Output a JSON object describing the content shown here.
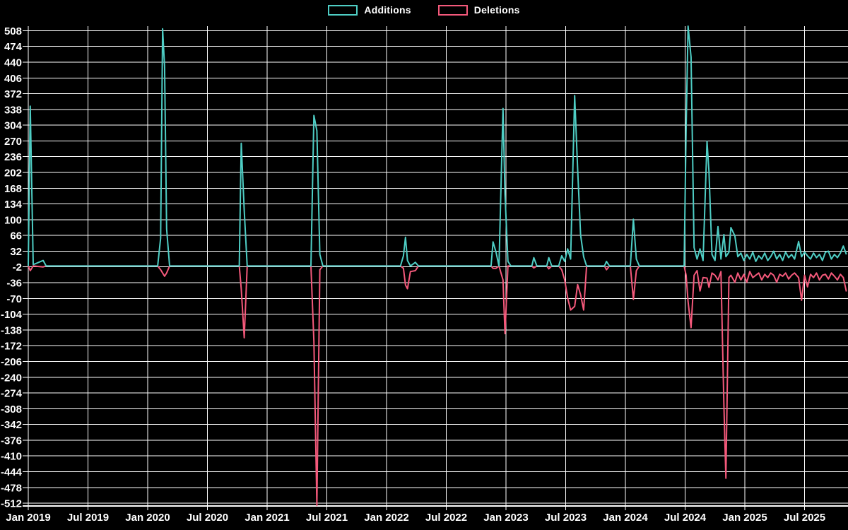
{
  "legend": {
    "items": [
      {
        "label": "Additions",
        "color": "#4ecdc4"
      },
      {
        "label": "Deletions",
        "color": "#f4597b"
      }
    ]
  },
  "chart_data": {
    "type": "line",
    "legend_position": "top-center",
    "grid": true,
    "background": "#000000",
    "grid_color": "#ffffff",
    "text_color": "#ffffff",
    "x_axis": {
      "unit": "months_since_jan_2019",
      "right_edge_t": 82.4,
      "ticks": [
        {
          "t": 0,
          "label": "Jan 2019"
        },
        {
          "t": 6,
          "label": "Jul 2019"
        },
        {
          "t": 12,
          "label": "Jan 2020"
        },
        {
          "t": 18,
          "label": "Jul 2020"
        },
        {
          "t": 24,
          "label": "Jan 2021"
        },
        {
          "t": 30,
          "label": "Jul 2021"
        },
        {
          "t": 36,
          "label": "Jan 2022"
        },
        {
          "t": 42,
          "label": "Jul 2022"
        },
        {
          "t": 48,
          "label": "Jan 2023"
        },
        {
          "t": 54,
          "label": "Jul 2023"
        },
        {
          "t": 60,
          "label": "Jan 2024"
        },
        {
          "t": 66,
          "label": "Jul 2024"
        },
        {
          "t": 72,
          "label": "Jan 2025"
        },
        {
          "t": 78,
          "label": "Jul 2025"
        }
      ]
    },
    "y_axis": {
      "tick_step": 34,
      "visible_range": [
        -517,
        519
      ],
      "tick_values": [
        508,
        474,
        440,
        406,
        372,
        338,
        304,
        270,
        236,
        202,
        168,
        134,
        100,
        66,
        32,
        -2,
        -36,
        -70,
        -104,
        -138,
        -172,
        -206,
        -240,
        -274,
        -308,
        -342,
        -376,
        -410,
        -444,
        -478,
        -512
      ]
    },
    "series": [
      {
        "name": "Additions",
        "color": "#4ecdc4",
        "value_index": 1
      },
      {
        "name": "Deletions",
        "color": "#f4597b",
        "value_index": 2
      }
    ],
    "points": [
      [
        0.0,
        0,
        0
      ],
      [
        0.2,
        345,
        -10
      ],
      [
        0.5,
        3,
        0
      ],
      [
        1.5,
        12,
        -2
      ],
      [
        1.8,
        0,
        0
      ],
      [
        13.0,
        0,
        0
      ],
      [
        13.3,
        60,
        -8
      ],
      [
        13.5,
        512,
        -15
      ],
      [
        13.7,
        430,
        -22
      ],
      [
        13.9,
        80,
        -15
      ],
      [
        14.2,
        0,
        0
      ],
      [
        21.2,
        0,
        0
      ],
      [
        21.4,
        265,
        -50
      ],
      [
        21.7,
        120,
        -155
      ],
      [
        22.0,
        0,
        0
      ],
      [
        28.4,
        0,
        0
      ],
      [
        28.7,
        325,
        -163
      ],
      [
        29.0,
        292,
        -517
      ],
      [
        29.3,
        25,
        -8
      ],
      [
        29.6,
        0,
        0
      ],
      [
        37.4,
        0,
        0
      ],
      [
        37.7,
        22,
        -5
      ],
      [
        37.9,
        62,
        -41
      ],
      [
        38.1,
        12,
        -49
      ],
      [
        38.4,
        0,
        -12
      ],
      [
        38.9,
        8,
        -10
      ],
      [
        39.2,
        0,
        0
      ],
      [
        46.5,
        0,
        0
      ],
      [
        46.7,
        52,
        -5
      ],
      [
        47.0,
        30,
        -5
      ],
      [
        47.3,
        0,
        0
      ],
      [
        47.7,
        340,
        -30
      ],
      [
        47.9,
        155,
        -146
      ],
      [
        48.2,
        10,
        0
      ],
      [
        48.5,
        0,
        0
      ],
      [
        50.6,
        0,
        0
      ],
      [
        50.8,
        18,
        -4
      ],
      [
        51.1,
        0,
        0
      ],
      [
        52.1,
        0,
        0
      ],
      [
        52.3,
        18,
        -6
      ],
      [
        52.6,
        0,
        0
      ],
      [
        53.3,
        0,
        0
      ],
      [
        53.6,
        22,
        -8
      ],
      [
        53.9,
        10,
        -30
      ],
      [
        54.2,
        37,
        -69
      ],
      [
        54.5,
        15,
        -95
      ],
      [
        54.9,
        368,
        -87
      ],
      [
        55.2,
        210,
        -40
      ],
      [
        55.5,
        67,
        -62
      ],
      [
        55.8,
        20,
        -95
      ],
      [
        56.1,
        0,
        0
      ],
      [
        57.9,
        0,
        0
      ],
      [
        58.1,
        10,
        -8
      ],
      [
        58.4,
        0,
        0
      ],
      [
        60.5,
        0,
        0
      ],
      [
        60.8,
        101,
        -72
      ],
      [
        61.1,
        15,
        -10
      ],
      [
        61.4,
        0,
        0
      ],
      [
        65.9,
        0,
        0
      ],
      [
        66.1,
        295,
        -20
      ],
      [
        66.3,
        519,
        -77
      ],
      [
        66.6,
        451,
        -133
      ],
      [
        66.9,
        40,
        -20
      ],
      [
        67.2,
        15,
        -10
      ],
      [
        67.5,
        37,
        -54
      ],
      [
        67.8,
        12,
        -25
      ],
      [
        68.2,
        269,
        -26
      ],
      [
        68.4,
        203,
        -46
      ],
      [
        68.7,
        25,
        -15
      ],
      [
        69.0,
        12,
        -20
      ],
      [
        69.3,
        85,
        -30
      ],
      [
        69.6,
        15,
        -12
      ],
      [
        69.9,
        68,
        -301
      ],
      [
        70.1,
        20,
        -458
      ],
      [
        70.4,
        30,
        -25
      ],
      [
        70.6,
        83,
        -20
      ],
      [
        71.0,
        65,
        -35
      ],
      [
        71.3,
        20,
        -15
      ],
      [
        71.6,
        28,
        -30
      ],
      [
        71.9,
        12,
        -18
      ],
      [
        72.2,
        25,
        -35
      ],
      [
        72.5,
        15,
        -12
      ],
      [
        72.8,
        30,
        -25
      ],
      [
        73.1,
        10,
        -20
      ],
      [
        73.4,
        22,
        -15
      ],
      [
        73.7,
        15,
        -30
      ],
      [
        74.0,
        28,
        -18
      ],
      [
        74.3,
        12,
        -25
      ],
      [
        74.6,
        20,
        -15
      ],
      [
        74.9,
        32,
        -20
      ],
      [
        75.2,
        15,
        -35
      ],
      [
        75.5,
        25,
        -18
      ],
      [
        75.8,
        12,
        -22
      ],
      [
        76.1,
        30,
        -15
      ],
      [
        76.4,
        18,
        -28
      ],
      [
        76.7,
        25,
        -20
      ],
      [
        77.0,
        15,
        -15
      ],
      [
        77.4,
        53,
        -25
      ],
      [
        77.7,
        20,
        -74
      ],
      [
        78.0,
        30,
        -20
      ],
      [
        78.3,
        22,
        -45
      ],
      [
        78.6,
        15,
        -18
      ],
      [
        78.9,
        28,
        -25
      ],
      [
        79.2,
        18,
        -15
      ],
      [
        79.5,
        25,
        -30
      ],
      [
        79.8,
        12,
        -20
      ],
      [
        80.1,
        30,
        -18
      ],
      [
        80.4,
        32,
        -28
      ],
      [
        80.7,
        15,
        -15
      ],
      [
        81.0,
        25,
        -22
      ],
      [
        81.3,
        18,
        -30
      ],
      [
        81.6,
        28,
        -18
      ],
      [
        81.9,
        43,
        -25
      ],
      [
        82.2,
        25,
        -55
      ]
    ]
  }
}
